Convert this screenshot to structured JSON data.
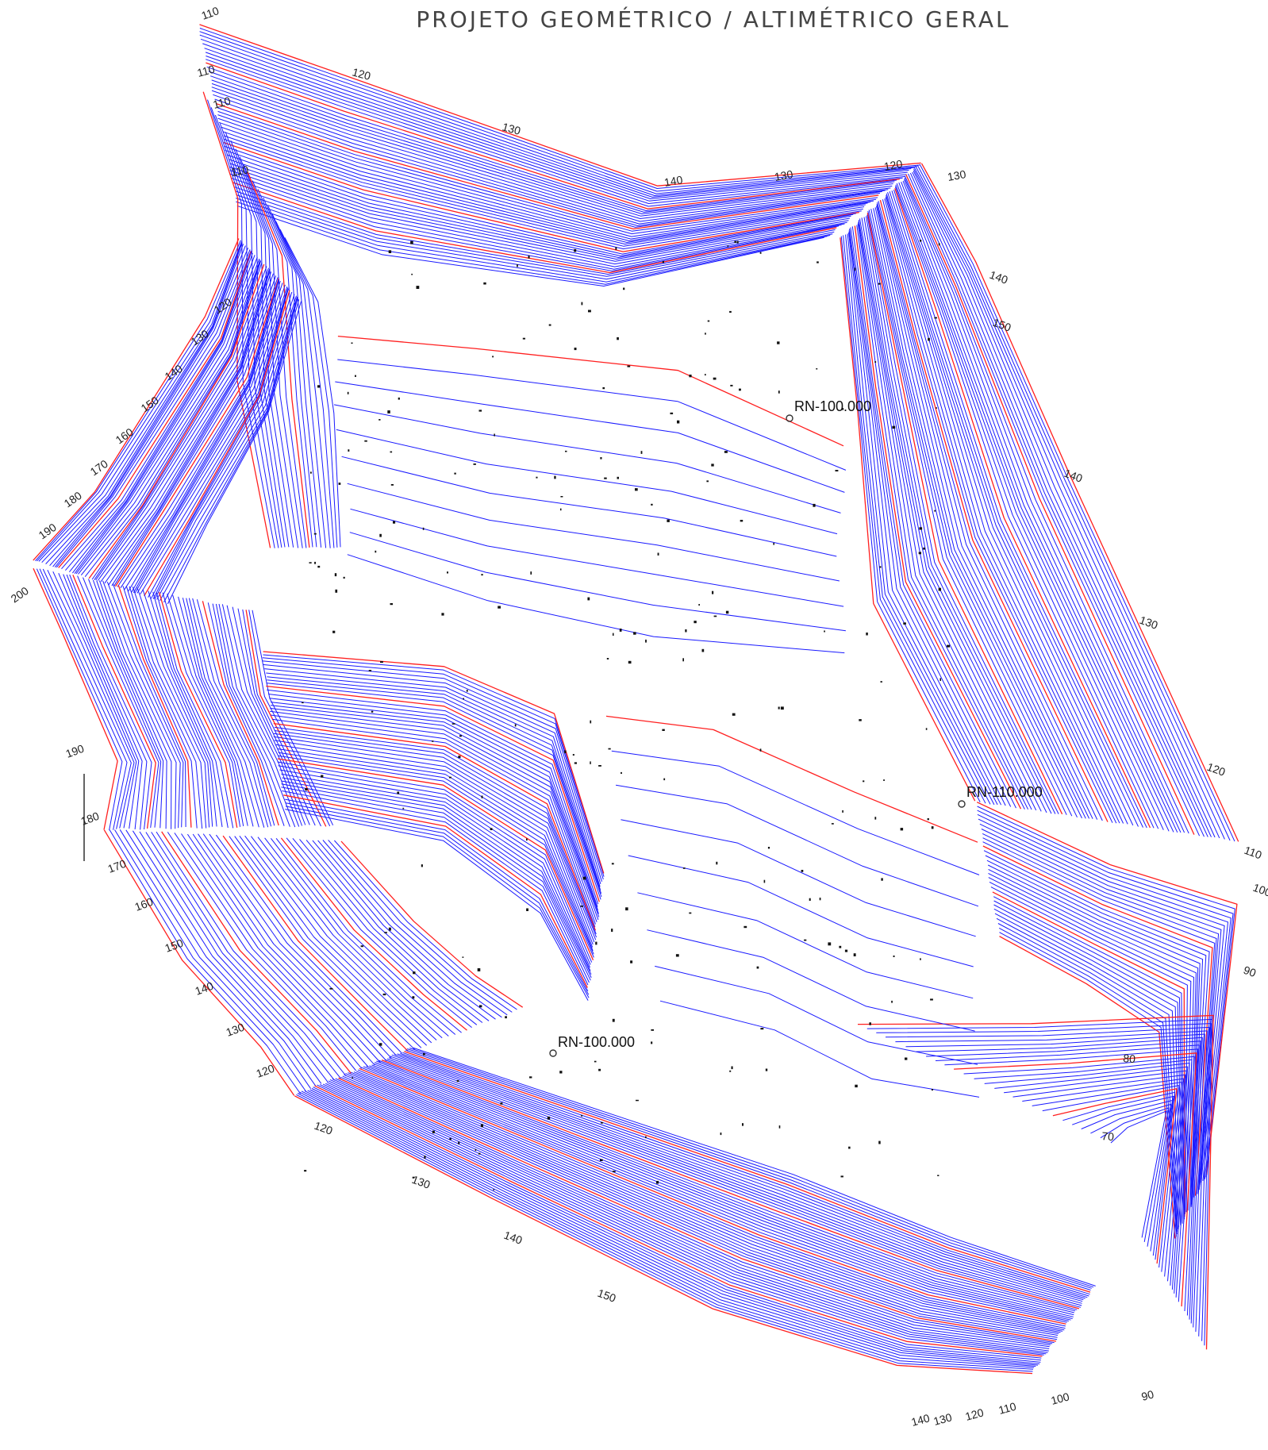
{
  "title": "PROJETO GEOMÉTRICO / ALTIMÉTRICO GERAL",
  "colors": {
    "contour_minor": "#1a1aff",
    "contour_major": "#ff1f1f",
    "background": "#ffffff"
  },
  "benchmarks": [
    {
      "label": "RN-100.000"
    },
    {
      "label": "RN-110.000"
    },
    {
      "label": "RN-100.000"
    }
  ],
  "contour_labels": [
    "110",
    "110",
    "110",
    "120",
    "130",
    "140",
    "130",
    "120",
    "130",
    "110",
    "120",
    "130",
    "140",
    "150",
    "160",
    "170",
    "180",
    "190",
    "200",
    "190",
    "180",
    "170",
    "160",
    "150",
    "140",
    "130",
    "120",
    "140",
    "150",
    "140",
    "130",
    "120",
    "110",
    "100",
    "90",
    "120",
    "130",
    "140",
    "150",
    "140",
    "130",
    "120",
    "110",
    "100",
    "90",
    "80",
    "70"
  ]
}
